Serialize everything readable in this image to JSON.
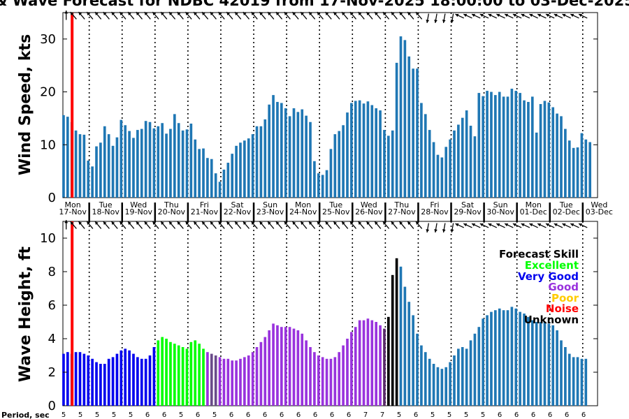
{
  "title": "& Wave Forecast for NDBC 42019 from 17-Nov-2025 18:00:00 to 03-Dec-2025",
  "colors": {
    "bar": "#1f77b4",
    "now_line": "#ff0000",
    "excellent": "#00ff00",
    "very_good": "#0000ee",
    "good": "#9933dd",
    "poor": "#ffcc00",
    "noise": "#ff0000",
    "unknown": "#000000"
  },
  "day_labels": [
    {
      "dow": "Mon",
      "date": "17-Nov"
    },
    {
      "dow": "Tue",
      "date": "18-Nov"
    },
    {
      "dow": "Wed",
      "date": "19-Nov"
    },
    {
      "dow": "Thu",
      "date": "20-Nov"
    },
    {
      "dow": "Fri",
      "date": "21-Nov"
    },
    {
      "dow": "Sat",
      "date": "22-Nov"
    },
    {
      "dow": "Sun",
      "date": "23-Nov"
    },
    {
      "dow": "Mon",
      "date": "24-Nov"
    },
    {
      "dow": "Tue",
      "date": "25-Nov"
    },
    {
      "dow": "Wed",
      "date": "26-Nov"
    },
    {
      "dow": "Thu",
      "date": "27-Nov"
    },
    {
      "dow": "Fri",
      "date": "28-Nov"
    },
    {
      "dow": "Sat",
      "date": "29-Nov"
    },
    {
      "dow": "Sun",
      "date": "30-Nov"
    },
    {
      "dow": "Mon",
      "date": "01-Dec"
    },
    {
      "dow": "Tue",
      "date": "02-Dec"
    },
    {
      "dow": "Wed",
      "date": "03-Dec"
    }
  ],
  "legend": {
    "title": "Forecast Skill",
    "items": [
      "Excellent",
      "Very Good",
      "Good",
      "Poor",
      "Noise",
      "Unknown"
    ]
  },
  "period_label": "Period, sec",
  "periods": [
    5,
    5,
    5,
    5,
    5,
    6,
    6,
    5,
    6,
    5,
    6,
    6,
    6,
    6,
    6,
    6,
    6,
    6,
    7,
    7,
    5,
    6,
    5,
    5,
    5,
    5,
    6,
    6,
    6,
    6,
    6,
    6,
    6,
    6,
    6,
    6,
    6,
    6,
    6,
    6,
    6,
    6,
    6,
    6,
    6,
    6,
    6,
    6,
    6,
    6,
    6,
    6,
    6,
    6,
    6,
    6,
    6,
    6,
    6,
    6,
    6,
    6,
    6,
    6,
    6,
    6,
    6,
    6,
    6,
    6,
    6,
    6,
    6,
    6,
    6,
    6,
    6,
    6,
    6,
    6,
    6,
    6,
    6,
    6,
    6
  ],
  "chart_data": [
    {
      "type": "bar",
      "title": "Wind Speed",
      "ylabel": "Wind Speed, kts",
      "ylim": [
        0,
        35
      ],
      "yticks": [
        0,
        10,
        20,
        30
      ],
      "x_range_days": [
        0,
        16.25
      ],
      "bar_step_days": 0.125,
      "now_day": 0.25,
      "values": [
        15.6,
        15.3,
        14.3,
        12.7,
        12.0,
        11.9,
        7.0,
        5.9,
        9.7,
        10.4,
        13.5,
        12.0,
        9.8,
        11.4,
        14.7,
        13.7,
        12.6,
        11.3,
        12.8,
        13.0,
        14.5,
        14.3,
        13.1,
        13.5,
        14.1,
        12.1,
        13.0,
        15.8,
        14.1,
        12.7,
        12.9,
        14.0,
        11.0,
        9.2,
        9.3,
        7.5,
        7.3,
        4.6,
        3.0,
        5.3,
        6.6,
        8.3,
        9.8,
        10.4,
        10.8,
        11.2,
        12.0,
        13.5,
        13.5,
        14.8,
        17.6,
        19.4,
        18.1,
        17.9,
        16.9,
        15.4,
        16.9,
        16.2,
        16.7,
        15.5,
        14.3,
        6.9,
        4.6,
        4.3,
        5.2,
        9.2,
        12.0,
        12.6,
        13.7,
        16.1,
        17.9,
        18.3,
        18.4,
        17.8,
        18.2,
        17.5,
        16.9,
        16.5,
        12.8,
        11.7,
        12.7,
        25.5,
        30.5,
        29.8,
        26.7,
        24.4,
        24.4,
        17.9,
        15.8,
        12.8,
        10.5,
        8.1,
        7.6,
        9.6,
        11.0,
        12.7,
        13.8,
        15.1,
        16.5,
        13.6,
        11.6,
        19.8,
        19.2,
        20.2,
        20.0,
        19.4,
        20.0,
        19.1,
        19.1,
        20.6,
        20.2,
        19.8,
        18.4,
        18.1,
        19.1,
        12.3,
        17.7,
        18.3,
        18.0,
        17.1,
        15.9,
        15.4,
        13.0,
        10.8,
        9.4,
        9.5,
        12.2,
        11.0,
        10.5
      ],
      "arrow_dirs": [
        1,
        1,
        1,
        1,
        1,
        1,
        1,
        1,
        1,
        1,
        1,
        1,
        1,
        1,
        1,
        1,
        1,
        1,
        1,
        1,
        1,
        1,
        1,
        1,
        1,
        1,
        1,
        1,
        1,
        1,
        1,
        1,
        1,
        1,
        1,
        1,
        1,
        1,
        1,
        1,
        1,
        1,
        1,
        1,
        1,
        1,
        1,
        1,
        1,
        1,
        1,
        1,
        1,
        1,
        1,
        1,
        1,
        1,
        1,
        1,
        1,
        1,
        1,
        1,
        2,
        2,
        2,
        2,
        3,
        3,
        3,
        3,
        3,
        3,
        3,
        3,
        3,
        3,
        3,
        3,
        3,
        3,
        3,
        3,
        3
      ]
    },
    {
      "type": "bar",
      "title": "Wave Height",
      "ylabel": "Wave Height, ft",
      "ylim": [
        0,
        11
      ],
      "yticks": [
        0,
        2,
        4,
        6,
        8,
        10
      ],
      "x_range_days": [
        0,
        16.25
      ],
      "bar_step_days": 0.125,
      "now_day": 0.25,
      "values": [
        3.1,
        3.2,
        3.1,
        3.2,
        3.2,
        3.1,
        3.0,
        2.8,
        2.6,
        2.5,
        2.5,
        2.8,
        2.9,
        3.1,
        3.3,
        3.4,
        3.3,
        3.1,
        2.9,
        2.8,
        2.8,
        3.0,
        3.5,
        3.9,
        4.1,
        4.0,
        3.8,
        3.7,
        3.6,
        3.5,
        3.4,
        3.8,
        3.9,
        3.7,
        3.4,
        3.2,
        3.1,
        3.0,
        2.9,
        2.8,
        2.8,
        2.7,
        2.7,
        2.8,
        2.9,
        3.0,
        3.2,
        3.5,
        3.8,
        4.1,
        4.5,
        4.9,
        4.8,
        4.7,
        4.7,
        4.7,
        4.6,
        4.5,
        4.3,
        3.9,
        3.5,
        3.2,
        3.0,
        2.9,
        2.8,
        2.8,
        2.9,
        3.2,
        3.6,
        4.0,
        4.4,
        4.7,
        5.1,
        5.1,
        5.2,
        5.1,
        5.0,
        4.8,
        4.6,
        5.3,
        7.8,
        8.8,
        8.3,
        7.1,
        6.2,
        5.4,
        4.3,
        3.6,
        3.2,
        2.8,
        2.5,
        2.3,
        2.2,
        2.3,
        2.6,
        3.0,
        3.4,
        3.5,
        3.4,
        3.9,
        4.3,
        4.7,
        5.2,
        5.4,
        5.6,
        5.7,
        5.8,
        5.7,
        5.7,
        5.9,
        5.8,
        5.6,
        5.5,
        5.3,
        5.1,
        5.0,
        5.0,
        5.0,
        4.9,
        4.8,
        4.5,
        3.9,
        3.5,
        3.1,
        2.9,
        2.9,
        2.8,
        2.8
      ],
      "skill_by_index": "0-22 very_good, 23-34 excellent, 35-70 good, 71-81 unknown-mix, 82+ unknown/blue"
    }
  ]
}
